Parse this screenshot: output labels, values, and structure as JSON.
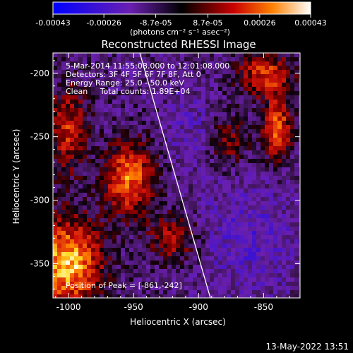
{
  "chart_data": {
    "type": "heatmap",
    "title": "Reconstructed RHESSI Image",
    "xlabel": "Heliocentric X (arcsec)",
    "ylabel": "Heliocentric Y (arcsec)",
    "xlim": [
      -1012,
      -822
    ],
    "ylim": [
      -377,
      -184
    ],
    "x_ticks": [
      "-1000",
      "-950",
      "-900",
      "-850"
    ],
    "x_tick_values": [
      -1000,
      -950,
      -900,
      -850
    ],
    "y_ticks": [
      "-200",
      "-250",
      "-300",
      "-350"
    ],
    "y_tick_values": [
      -200,
      -250,
      -300,
      -350
    ],
    "colorbar": {
      "min": -0.00043,
      "max": 0.00043,
      "tick_labels": [
        "-0.00043",
        "-0.00026",
        "-8.7e-05",
        "8.7e-05",
        "0.00026",
        "0.00043"
      ],
      "tick_values": [
        -0.00043,
        -0.00026,
        -8.7e-05,
        8.7e-05,
        0.00026,
        0.00043
      ],
      "units": "(photons cm⁻² s⁻¹ asec⁻²)",
      "colors": [
        "#0000ff",
        "#6a1fb0",
        "#000000",
        "#c80000",
        "#ff8000",
        "#ffffff"
      ]
    },
    "annotations": [
      "5-Mar-2014 11:55:08.000 to 12:01:08.000",
      "Detectors: 3F 4F 5F 6F 7F 8F, Att 0",
      "Energy Range: 25.0 - 50.0 keV",
      "Clean     Total counts: 1.89E+04"
    ],
    "peak_label": "Position of Peak = [-861,-242]",
    "peak": [
      -861,
      -242
    ],
    "grid": false
  },
  "footer": {
    "date_stamp": "13-May-2022 13:51"
  }
}
